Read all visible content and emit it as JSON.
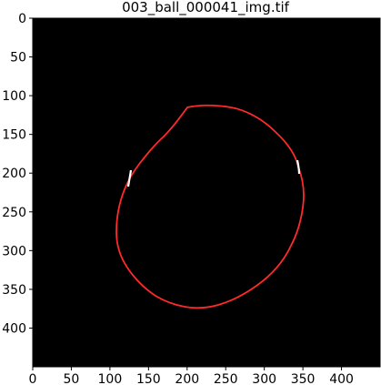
{
  "window": {
    "title": "003_ball_000041_img.tif"
  },
  "image_view": {
    "background_color": "#000000",
    "frame_color": "#000000",
    "x_ticks": [
      "0",
      "50",
      "100",
      "150",
      "200",
      "250",
      "300",
      "350",
      "400"
    ],
    "y_ticks": [
      "0",
      "50",
      "100",
      "150",
      "200",
      "250",
      "300",
      "350",
      "400"
    ],
    "contour_color": "#ff2a2a",
    "contour_highlight_color": "#ffffff"
  }
}
